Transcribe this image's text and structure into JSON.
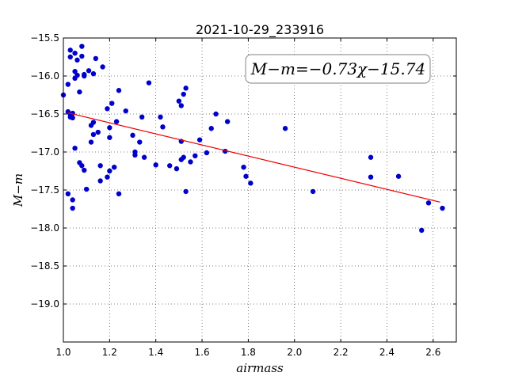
{
  "chart_data": {
    "type": "scatter",
    "title": "2021-10-29_233916",
    "xlabel": "airmass",
    "ylabel": "M−m",
    "annotation": "M−m=−0.73χ−15.74",
    "xlim": [
      1.0,
      2.7
    ],
    "ylim": [
      -15.5,
      -19.5
    ],
    "y_inverted": true,
    "grid": true,
    "xticks": [
      1.0,
      1.2,
      1.4,
      1.6,
      1.8,
      2.0,
      2.2,
      2.4,
      2.6
    ],
    "xtick_labels": [
      "1.0",
      "1.2",
      "1.4",
      "1.6",
      "1.8",
      "2.0",
      "2.2",
      "2.4",
      "2.6"
    ],
    "yticks": [
      -15.5,
      -16.0,
      -16.5,
      -17.0,
      -17.5,
      -18.0,
      -18.5,
      -19.0
    ],
    "ytick_labels": [
      "−15.5",
      "−16.0",
      "−16.5",
      "−17.0",
      "−17.5",
      "−18.0",
      "−18.5",
      "−19.0"
    ],
    "points": [
      [
        1.0,
        -16.25
      ],
      [
        1.02,
        -17.55
      ],
      [
        1.02,
        -16.47
      ],
      [
        1.02,
        -16.11
      ],
      [
        1.03,
        -16.54
      ],
      [
        1.03,
        -16.51
      ],
      [
        1.03,
        -15.75
      ],
      [
        1.03,
        -15.66
      ],
      [
        1.04,
        -16.49
      ],
      [
        1.04,
        -16.55
      ],
      [
        1.04,
        -17.63
      ],
      [
        1.04,
        -17.74
      ],
      [
        1.05,
        -15.7
      ],
      [
        1.05,
        -16.03
      ],
      [
        1.05,
        -15.94
      ],
      [
        1.05,
        -16.95
      ],
      [
        1.06,
        -15.79
      ],
      [
        1.06,
        -15.99
      ],
      [
        1.07,
        -16.21
      ],
      [
        1.07,
        -17.14
      ],
      [
        1.08,
        -15.74
      ],
      [
        1.08,
        -15.61
      ],
      [
        1.08,
        -17.18
      ],
      [
        1.09,
        -17.24
      ],
      [
        1.09,
        -16.0
      ],
      [
        1.09,
        -15.98
      ],
      [
        1.1,
        -17.49
      ],
      [
        1.11,
        -15.93
      ],
      [
        1.12,
        -16.87
      ],
      [
        1.12,
        -16.65
      ],
      [
        1.13,
        -16.77
      ],
      [
        1.13,
        -16.61
      ],
      [
        1.13,
        -15.97
      ],
      [
        1.14,
        -15.77
      ],
      [
        1.15,
        -16.74
      ],
      [
        1.16,
        -17.18
      ],
      [
        1.16,
        -17.38
      ],
      [
        1.17,
        -15.88
      ],
      [
        1.19,
        -17.33
      ],
      [
        1.19,
        -16.43
      ],
      [
        1.2,
        -16.81
      ],
      [
        1.2,
        -16.68
      ],
      [
        1.2,
        -17.25
      ],
      [
        1.21,
        -16.36
      ],
      [
        1.22,
        -17.2
      ],
      [
        1.23,
        -16.6
      ],
      [
        1.24,
        -16.19
      ],
      [
        1.24,
        -17.55
      ],
      [
        1.27,
        -16.46
      ],
      [
        1.3,
        -16.78
      ],
      [
        1.31,
        -17.04
      ],
      [
        1.31,
        -17.0
      ],
      [
        1.33,
        -16.87
      ],
      [
        1.34,
        -16.54
      ],
      [
        1.35,
        -17.07
      ],
      [
        1.37,
        -16.09
      ],
      [
        1.4,
        -17.17
      ],
      [
        1.42,
        -16.54
      ],
      [
        1.43,
        -16.67
      ],
      [
        1.46,
        -17.18
      ],
      [
        1.49,
        -17.22
      ],
      [
        1.5,
        -16.33
      ],
      [
        1.51,
        -16.39
      ],
      [
        1.51,
        -16.86
      ],
      [
        1.51,
        -17.1
      ],
      [
        1.52,
        -17.07
      ],
      [
        1.52,
        -16.24
      ],
      [
        1.53,
        -16.16
      ],
      [
        1.53,
        -17.52
      ],
      [
        1.55,
        -17.13
      ],
      [
        1.57,
        -17.05
      ],
      [
        1.59,
        -16.84
      ],
      [
        1.62,
        -17.01
      ],
      [
        1.64,
        -16.69
      ],
      [
        1.66,
        -16.5
      ],
      [
        1.7,
        -16.99
      ],
      [
        1.71,
        -16.6
      ],
      [
        1.78,
        -17.2
      ],
      [
        1.79,
        -17.32
      ],
      [
        1.81,
        -17.41
      ],
      [
        1.96,
        -16.69
      ],
      [
        2.08,
        -17.52
      ],
      [
        2.33,
        -17.07
      ],
      [
        2.33,
        -17.33
      ],
      [
        2.45,
        -17.32
      ],
      [
        2.55,
        -18.03
      ],
      [
        2.58,
        -17.67
      ],
      [
        2.64,
        -17.74
      ]
    ],
    "fit_line": {
      "slope": -0.73,
      "intercept": -15.74,
      "x_range": [
        1.02,
        2.63
      ]
    },
    "colors": {
      "points": "#0000cc",
      "fit_line": "#ee0000"
    }
  }
}
